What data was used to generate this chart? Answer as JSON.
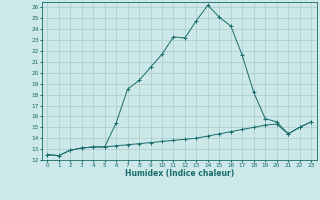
{
  "xlabel": "Humidex (Indice chaleur)",
  "ylabel": "",
  "bg_color": "#cce8e8",
  "grid_color": "#aacccc",
  "line_color": "#1a6b6b",
  "xlim": [
    -0.5,
    23.5
  ],
  "ylim": [
    12,
    26.5
  ],
  "xticks": [
    0,
    1,
    2,
    3,
    4,
    5,
    6,
    7,
    8,
    9,
    10,
    11,
    12,
    13,
    14,
    15,
    16,
    17,
    18,
    19,
    20,
    21,
    22,
    23
  ],
  "yticks": [
    12,
    13,
    14,
    15,
    16,
    17,
    18,
    19,
    20,
    21,
    22,
    23,
    24,
    25,
    26
  ],
  "line1_x": [
    0,
    1,
    2,
    3,
    4,
    5,
    6,
    7,
    8,
    9,
    10,
    11,
    12,
    13,
    14,
    15,
    16,
    17,
    18,
    19,
    20,
    21,
    22,
    23
  ],
  "line1_y": [
    12.5,
    12.4,
    12.9,
    13.1,
    13.2,
    13.2,
    15.4,
    18.5,
    19.3,
    20.5,
    21.7,
    23.3,
    23.2,
    24.8,
    26.2,
    25.1,
    24.3,
    21.6,
    18.2,
    15.8,
    15.5,
    14.4,
    15.0,
    15.5
  ],
  "line2_x": [
    0,
    1,
    2,
    3,
    4,
    5,
    6,
    7,
    8,
    9,
    10,
    11,
    12,
    13,
    14,
    15,
    16,
    17,
    18,
    19,
    20,
    21,
    22,
    23
  ],
  "line2_y": [
    12.5,
    12.4,
    12.9,
    13.1,
    13.2,
    13.2,
    13.3,
    13.4,
    13.5,
    13.6,
    13.7,
    13.8,
    13.9,
    14.0,
    14.2,
    14.4,
    14.6,
    14.8,
    15.0,
    15.2,
    15.3,
    14.4,
    15.0,
    15.5
  ]
}
